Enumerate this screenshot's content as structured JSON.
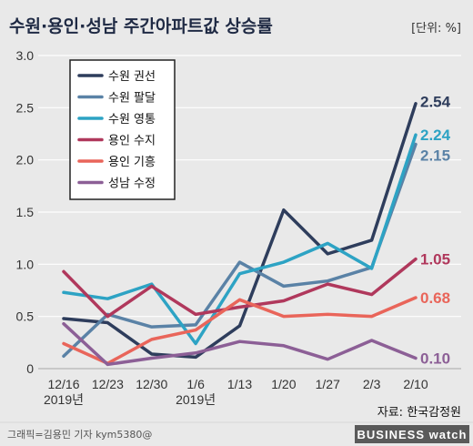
{
  "header": {
    "title": "수원·용인·성남 주간아파트값 상승률",
    "unit": "[단위: %]"
  },
  "chart_data": {
    "type": "line",
    "categories": [
      "12/16",
      "12/23",
      "12/30",
      "1/6",
      "1/13",
      "1/20",
      "1/27",
      "2/3",
      "2/10"
    ],
    "category_sublabels": [
      "2019년",
      "",
      "",
      "2019년",
      "",
      "",
      "",
      "",
      ""
    ],
    "ylim": [
      0,
      3.0
    ],
    "yticks": [
      "0",
      "0.5",
      "1.0",
      "1.5",
      "2.0",
      "2.5",
      "3.0"
    ],
    "grid": true,
    "legend_position": "top-left",
    "series": [
      {
        "name": "수원 권선",
        "color": "#2e3d5c",
        "values": [
          0.48,
          0.44,
          0.14,
          0.11,
          0.41,
          1.52,
          1.1,
          1.23,
          2.54
        ],
        "end_label": "2.54"
      },
      {
        "name": "수원 팔달",
        "color": "#5a82a6",
        "values": [
          0.12,
          0.52,
          0.4,
          0.42,
          1.02,
          0.79,
          0.84,
          0.97,
          2.15
        ],
        "end_label": "2.15"
      },
      {
        "name": "수원 영통",
        "color": "#2da3c4",
        "values": [
          0.73,
          0.67,
          0.81,
          0.24,
          0.91,
          1.02,
          1.2,
          0.96,
          2.24
        ],
        "end_label": "2.24"
      },
      {
        "name": "용인 수지",
        "color": "#b0385c",
        "values": [
          0.93,
          0.5,
          0.79,
          0.52,
          0.59,
          0.65,
          0.81,
          0.71,
          1.05
        ],
        "end_label": "1.05"
      },
      {
        "name": "용인 기흥",
        "color": "#e9655a",
        "values": [
          0.24,
          0.05,
          0.28,
          0.37,
          0.66,
          0.5,
          0.52,
          0.5,
          0.68
        ],
        "end_label": "0.68"
      },
      {
        "name": "성남 수정",
        "color": "#8c5f96",
        "values": [
          0.43,
          0.04,
          0.1,
          0.15,
          0.26,
          0.22,
          0.09,
          0.27,
          0.1
        ],
        "end_label": "0.10"
      }
    ]
  },
  "footer": {
    "source": "자료: 한국감정원",
    "credit": "그래픽=김용민 기자 kym5380@",
    "brand": "BUSINESS watch"
  }
}
